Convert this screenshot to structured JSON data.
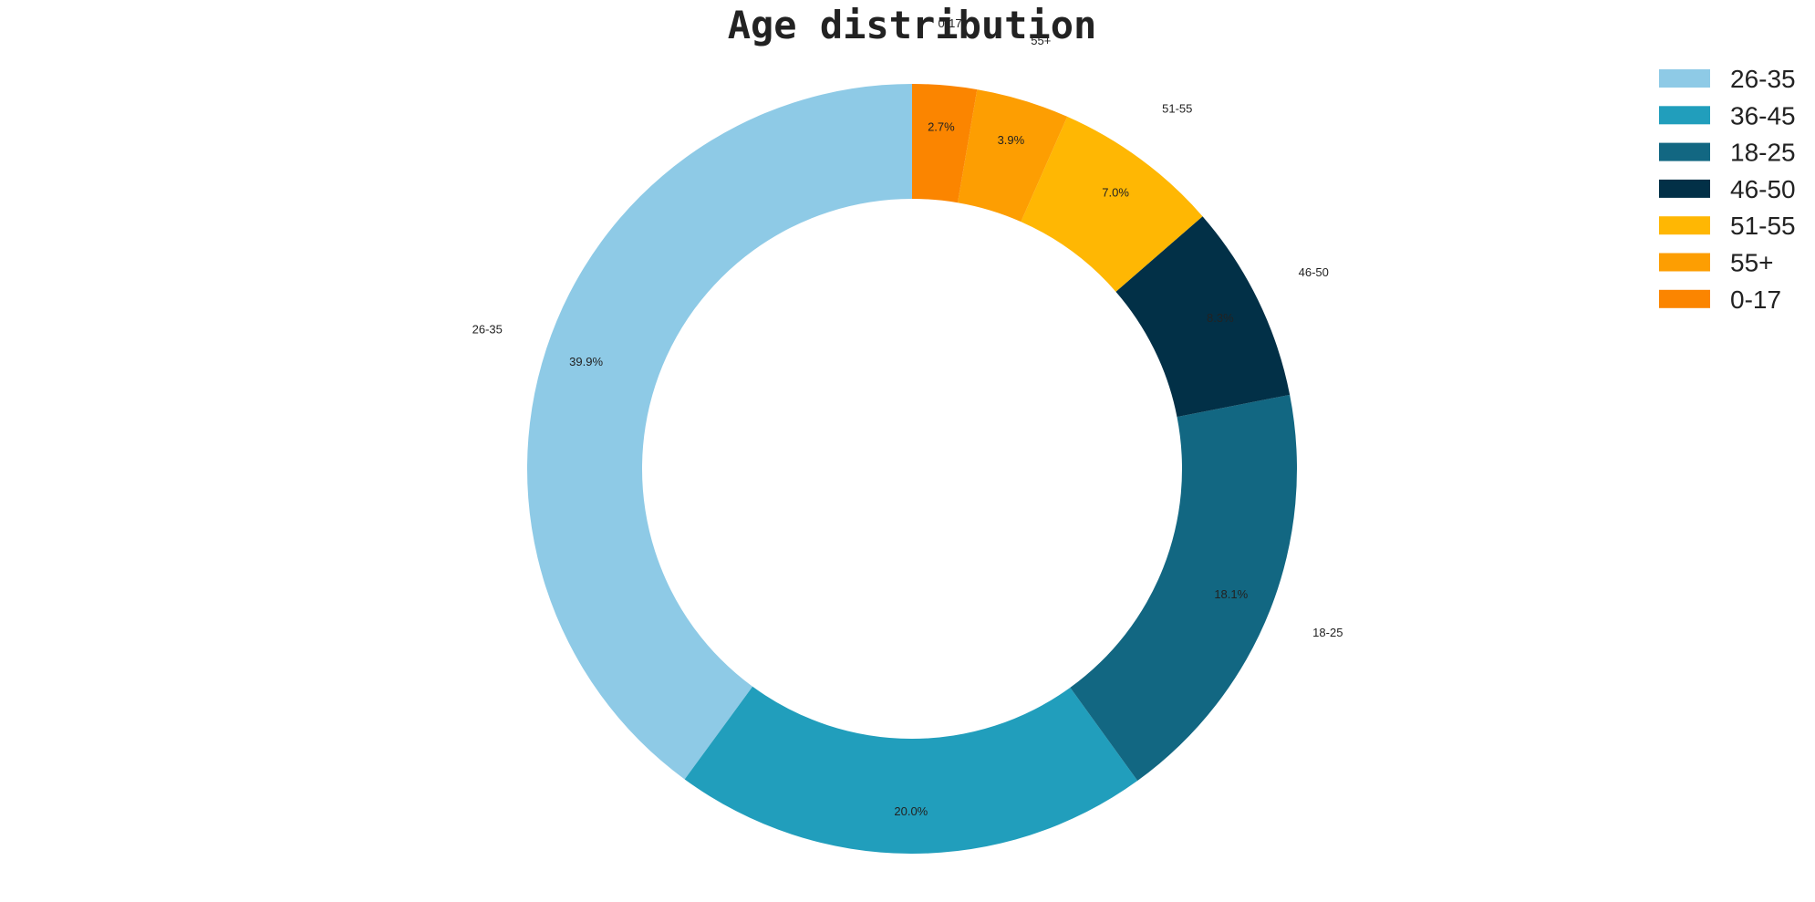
{
  "chart_data": {
    "type": "pie",
    "variant": "donut",
    "title": "Age distribution",
    "start_angle_deg": 90,
    "direction": "counterclockwise",
    "categories": [
      "26-35",
      "36-45",
      "18-25",
      "46-50",
      "51-55",
      "55+",
      "0-17"
    ],
    "values": [
      39.9,
      20.0,
      18.1,
      8.3,
      7.0,
      3.9,
      2.7
    ],
    "value_labels": [
      "39.9%",
      "20.0%",
      "18.1%",
      "8.3%",
      "7.0%",
      "3.9%",
      "2.7%"
    ],
    "colors": [
      "#8ecae6",
      "#219ebc",
      "#126782",
      "#023047",
      "#ffb703",
      "#fd9e02",
      "#fb8500"
    ],
    "legend": {
      "position": "top-right",
      "entries": [
        "26-35",
        "36-45",
        "18-25",
        "46-50",
        "51-55",
        "55+",
        "0-17"
      ]
    }
  }
}
